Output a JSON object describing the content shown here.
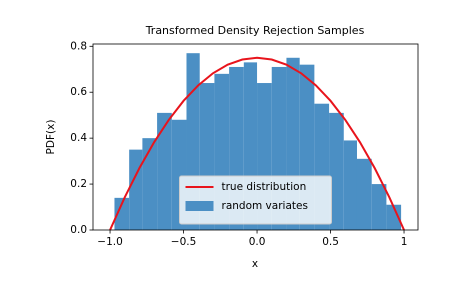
{
  "chart_data": {
    "type": "histogram",
    "title": "Transformed Density Rejection Samples",
    "xlabel": "x",
    "ylabel": "PDF(x)",
    "bins": [
      -0.97,
      -0.87,
      -0.78,
      -0.68,
      -0.58,
      -0.48,
      -0.39,
      -0.29,
      -0.19,
      -0.09,
      0.0,
      0.1,
      0.2,
      0.29,
      0.39,
      0.49,
      0.59,
      0.68,
      0.78,
      0.88,
      0.98
    ],
    "values": [
      0.14,
      0.35,
      0.4,
      0.51,
      0.48,
      0.77,
      0.64,
      0.68,
      0.71,
      0.73,
      0.64,
      0.71,
      0.75,
      0.72,
      0.55,
      0.51,
      0.39,
      0.31,
      0.2,
      0.11
    ],
    "name": "random variates",
    "color": "#4b8fc4",
    "lines": [
      {
        "name": "true distribution",
        "color": "#e8141c",
        "x": [
          -1.0,
          -0.9,
          -0.8,
          -0.7,
          -0.6,
          -0.5,
          -0.4,
          -0.3,
          -0.2,
          -0.1,
          0.0,
          0.1,
          0.2,
          0.3,
          0.4,
          0.5,
          0.6,
          0.7,
          0.8,
          0.9,
          1.0
        ],
        "values": [
          0.0,
          0.1425,
          0.27,
          0.3825,
          0.48,
          0.5625,
          0.63,
          0.6825,
          0.72,
          0.7425,
          0.75,
          0.7425,
          0.72,
          0.6825,
          0.63,
          0.5625,
          0.48,
          0.3825,
          0.27,
          0.1425,
          0.0
        ]
      }
    ],
    "xlim": [
      -1.116,
      1.095
    ],
    "ylim": [
      0,
      0.81
    ],
    "xticks": [
      {
        "value": -1.0,
        "label": "−1.0"
      },
      {
        "value": -0.5,
        "label": "−0.5"
      },
      {
        "value": 0.0,
        "label": "0.0"
      },
      0.5,
      1.0
    ],
    "yticks": [
      {
        "value": 0.0,
        "label": "0.0"
      },
      0.2,
      0.4,
      0.6,
      0.8
    ],
    "legend": "lower center"
  }
}
